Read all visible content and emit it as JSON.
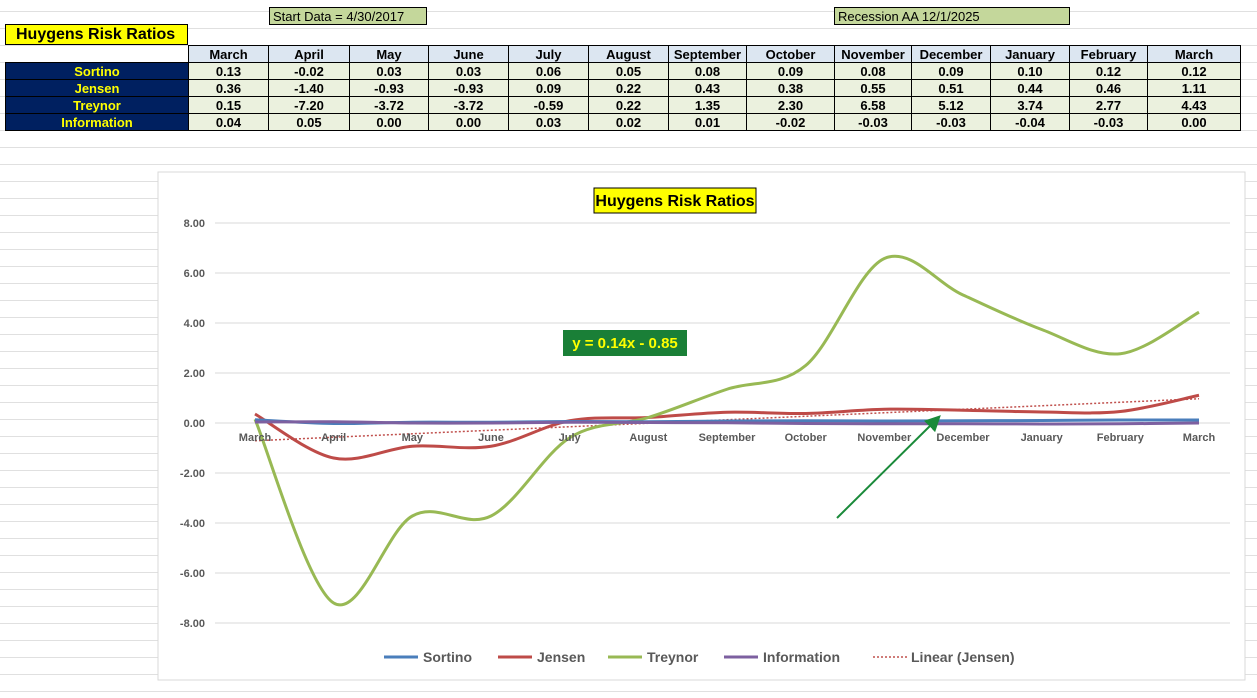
{
  "header": {
    "title": "Huygens Risk Ratios",
    "start_note": "Start Data = 4/30/2017",
    "recession_note": "Recession AA 12/1/2025"
  },
  "table": {
    "columns": [
      "March",
      "April",
      "May",
      "June",
      "July",
      "August",
      "September",
      "October",
      "November",
      "December",
      "January",
      "February",
      "March"
    ],
    "rows": [
      {
        "label": "Sortino",
        "cells": [
          "0.13",
          "-0.02",
          "0.03",
          "0.03",
          "0.06",
          "0.05",
          "0.08",
          "0.09",
          "0.08",
          "0.09",
          "0.10",
          "0.12",
          "0.12"
        ]
      },
      {
        "label": "Jensen",
        "cells": [
          "0.36",
          "-1.40",
          "-0.93",
          "-0.93",
          "0.09",
          "0.22",
          "0.43",
          "0.38",
          "0.55",
          "0.51",
          "0.44",
          "0.46",
          "1.11"
        ]
      },
      {
        "label": "Treynor",
        "cells": [
          "0.15",
          "-7.20",
          "-3.72",
          "-3.72",
          "-0.59",
          "0.22",
          "1.35",
          "2.30",
          "6.58",
          "5.12",
          "3.74",
          "2.77",
          "4.43"
        ]
      },
      {
        "label": "Information",
        "cells": [
          "0.04",
          "0.05",
          "0.00",
          "0.00",
          "0.03",
          "0.02",
          "0.01",
          "-0.02",
          "-0.03",
          "-0.03",
          "-0.04",
          "-0.03",
          "0.00"
        ]
      }
    ]
  },
  "chart_data": {
    "type": "line",
    "title": "Huygens Risk Ratios",
    "smooth": true,
    "grid": true,
    "categories": [
      "March",
      "April",
      "May",
      "June",
      "July",
      "August",
      "September",
      "October",
      "November",
      "December",
      "January",
      "February",
      "March"
    ],
    "ylim": [
      -8,
      8
    ],
    "yticks": [
      {
        "value": -8,
        "label": "-8.00"
      },
      {
        "value": -6,
        "label": "-6.00"
      },
      {
        "value": -4,
        "label": "-4.00"
      },
      {
        "value": -2,
        "label": "-2.00"
      },
      {
        "value": 0,
        "label": "0.00"
      },
      {
        "value": 2,
        "label": "2.00"
      },
      {
        "value": 4,
        "label": "4.00"
      },
      {
        "value": 6,
        "label": "6.00"
      },
      {
        "value": 8,
        "label": "8.00"
      }
    ],
    "series": [
      {
        "name": "Sortino",
        "color": "#4a7ebb",
        "values": [
          0.13,
          -0.02,
          0.03,
          0.03,
          0.06,
          0.05,
          0.08,
          0.09,
          0.08,
          0.09,
          0.1,
          0.12,
          0.12
        ]
      },
      {
        "name": "Jensen",
        "color": "#be4b48",
        "values": [
          0.36,
          -1.4,
          -0.93,
          -0.93,
          0.09,
          0.22,
          0.43,
          0.38,
          0.55,
          0.51,
          0.44,
          0.46,
          1.11
        ]
      },
      {
        "name": "Treynor",
        "color": "#98b954",
        "values": [
          0.15,
          -7.2,
          -3.72,
          -3.72,
          -0.59,
          0.22,
          1.35,
          2.3,
          6.58,
          5.12,
          3.74,
          2.77,
          4.43
        ]
      },
      {
        "name": "Information",
        "color": "#7d60a0",
        "values": [
          0.04,
          0.05,
          0.0,
          0.0,
          0.03,
          0.02,
          0.01,
          -0.02,
          -0.03,
          -0.03,
          -0.04,
          -0.03,
          0.0
        ]
      }
    ],
    "trendline": {
      "name": "Linear (Jensen)",
      "color": "#c0504d",
      "label": "y = 0.14x - 0.85",
      "slope": 0.14,
      "intercept": -0.85
    },
    "legend": "bottom"
  }
}
